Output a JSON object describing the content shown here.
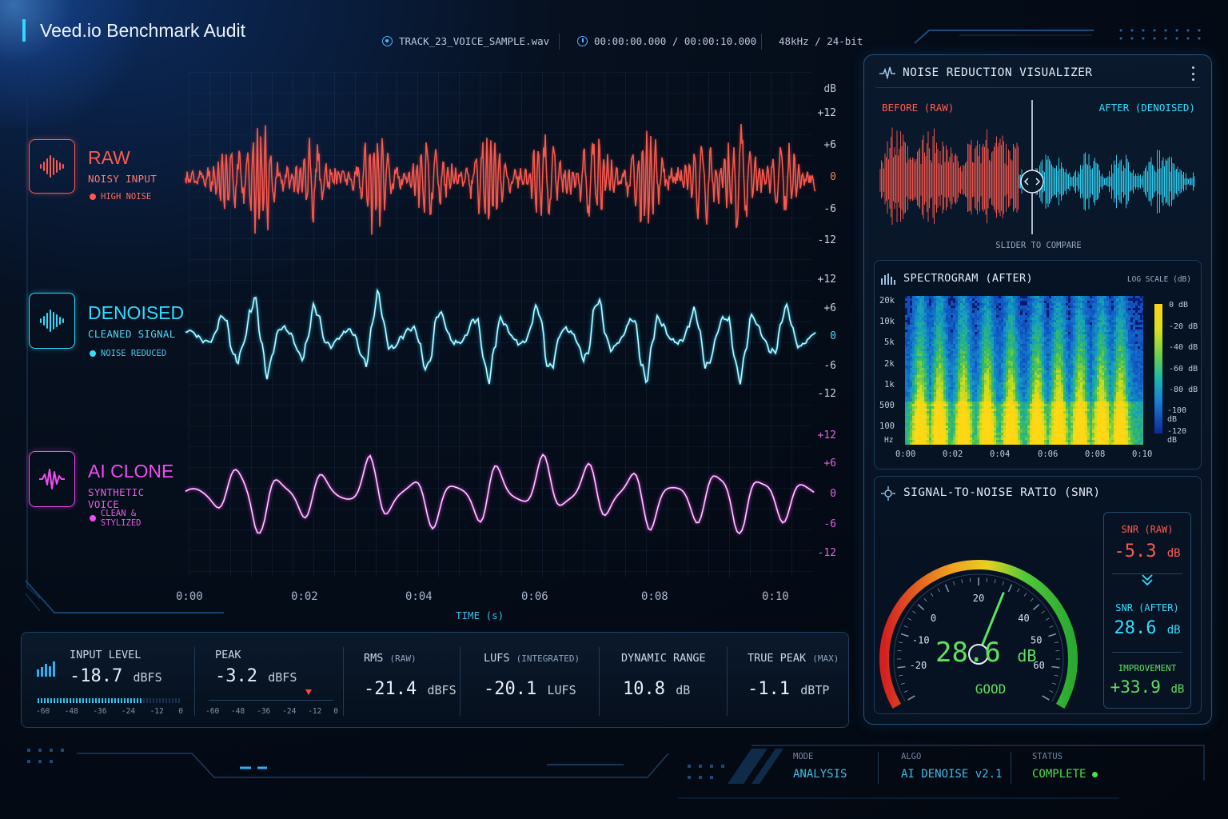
{
  "app": {
    "title": "Veed.io Benchmark Audit"
  },
  "header": {
    "file": "TRACK_23_VOICE_SAMPLE.wav",
    "timecode": "00:00:00.000 / 00:00:10.000",
    "format": "48kHz / 24-bit"
  },
  "tracks": [
    {
      "name": "RAW",
      "subtitle": "NOISY INPUT",
      "tag": "HIGH NOISE",
      "color": "#ff5a4e"
    },
    {
      "name": "DENOISED",
      "subtitle": "CLEANED SIGNAL",
      "tag": "NOISE REDUCED",
      "color": "#33dcff"
    },
    {
      "name": "AI CLONE",
      "subtitle": "SYNTHETIC VOICE",
      "tag": "CLEAN & STYLIZED",
      "color": "#f04cf0"
    }
  ],
  "waveform_axis": {
    "unit": "dB",
    "ticks": [
      "+12",
      "+6",
      "0",
      "-6",
      "-12"
    ],
    "time_ticks": [
      "0:00",
      "0:02",
      "0:04",
      "0:06",
      "0:08",
      "0:10"
    ],
    "time_label": "TIME (s)"
  },
  "metrics": {
    "input_level": {
      "label": "INPUT LEVEL",
      "value": "-18.7",
      "unit": "dBFS",
      "fill": 0.73
    },
    "peak": {
      "label": "PEAK",
      "value": "-3.2",
      "unit": "dBFS",
      "marker": 0.8
    },
    "meter_scale": [
      "-60",
      "-48",
      "-36",
      "-24",
      "-12",
      "0"
    ],
    "rms": {
      "label": "RMS",
      "qual": "(RAW)",
      "value": "-21.4",
      "unit": "dBFS"
    },
    "lufs": {
      "label": "LUFS",
      "qual": "(INTEGRATED)",
      "value": "-20.1",
      "unit": "LUFS"
    },
    "dynamic_range": {
      "label": "DYNAMIC RANGE",
      "value": "10.8",
      "unit": "dB"
    },
    "true_peak": {
      "label": "TRUE PEAK",
      "qual": "(MAX)",
      "value": "-1.1",
      "unit": "dBTP"
    }
  },
  "panel": {
    "title": "NOISE REDUCTION VISUALIZER",
    "menu_icon": "more-vertical-icon",
    "compare": {
      "before": "BEFORE (RAW)",
      "after": "AFTER (DENOISED)",
      "hint": "SLIDER TO COMPARE",
      "slider_position": 0.5
    },
    "spectrogram": {
      "title": "SPECTROGRAM (AFTER)",
      "scale_note": "LOG SCALE (dB)",
      "y_ticks": [
        "20k",
        "10k",
        "5k",
        "2k",
        "1k",
        "500",
        "100"
      ],
      "y_unit": "Hz",
      "x_ticks": [
        "0:00",
        "0:02",
        "0:04",
        "0:06",
        "0:08",
        "0:10"
      ],
      "legend": [
        "0 dB",
        "-20 dB",
        "-40 dB",
        "-60 dB",
        "-80 dB",
        "-100 dB",
        "-120 dB"
      ]
    },
    "snr": {
      "title": "SIGNAL-TO-NOISE RATIO (SNR)",
      "gauge_ticks": [
        "-20",
        "-10",
        "0",
        "20",
        "40",
        "50",
        "60"
      ],
      "value": "28.6",
      "unit": "dB",
      "rating": "GOOD",
      "raw_label": "SNR (RAW)",
      "raw_value": "-5.3",
      "after_label": "SNR (AFTER)",
      "after_value": "28.6",
      "improvement_label": "IMPROVEMENT",
      "improvement_value": "+33.9"
    }
  },
  "footer": {
    "mode_label": "MODE",
    "mode": "ANALYSIS",
    "algo_label": "ALGO",
    "algo": "AI DENOISE v2.1",
    "status_label": "STATUS",
    "status": "COMPLETE"
  },
  "colors": {
    "raw": "#ff5a4e",
    "denoised": "#33dcff",
    "clone": "#f04cf0",
    "good": "#4be04b"
  }
}
